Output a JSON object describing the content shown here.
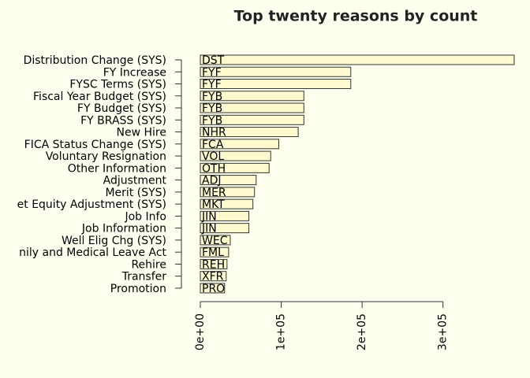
{
  "chart_data": {
    "type": "hbar",
    "title": "Top twenty reasons by count",
    "categories": [
      "Distribution Change (SYS)",
      "FY Increase",
      "FYSC Terms (SYS)",
      "Fiscal Year Budget (SYS)",
      "FY Budget (SYS)",
      "FY BRASS (SYS)",
      "New Hire",
      "FICA Status Change (SYS)",
      "Voluntary Resignation",
      "Other Information",
      "Adjustment",
      "Merit (SYS)",
      "et Equity Adjustment (SYS)",
      "Job Info",
      "Job Information",
      "Well Elig Chg (SYS)",
      "nily and Medical Leave Act",
      "Rehire",
      "Transfer",
      "Promotion"
    ],
    "values": [
      388000,
      186000,
      186000,
      128000,
      128000,
      128000,
      121000,
      97000,
      87000,
      85000,
      69000,
      67000,
      65000,
      60000,
      60000,
      37000,
      35000,
      33000,
      32000,
      30000
    ],
    "bar_labels": [
      "DST",
      "FYF",
      "FYF",
      "FYB",
      "FYB",
      "FYB",
      "NHR",
      "FCA",
      "VOL",
      "OTH",
      "ADJ",
      "MER",
      "MKT",
      "JIN",
      "JIN",
      "WEC",
      "FML",
      "REH",
      "XFR",
      "PRO"
    ],
    "color": "#fffacd",
    "xlim": [
      0,
      390000
    ],
    "xticks": [
      {
        "value": 0,
        "label": "0e+00"
      },
      {
        "value": 100000,
        "label": "1e+05"
      },
      {
        "value": 200000,
        "label": "2e+05"
      },
      {
        "value": 300000,
        "label": "3e+05"
      }
    ]
  }
}
